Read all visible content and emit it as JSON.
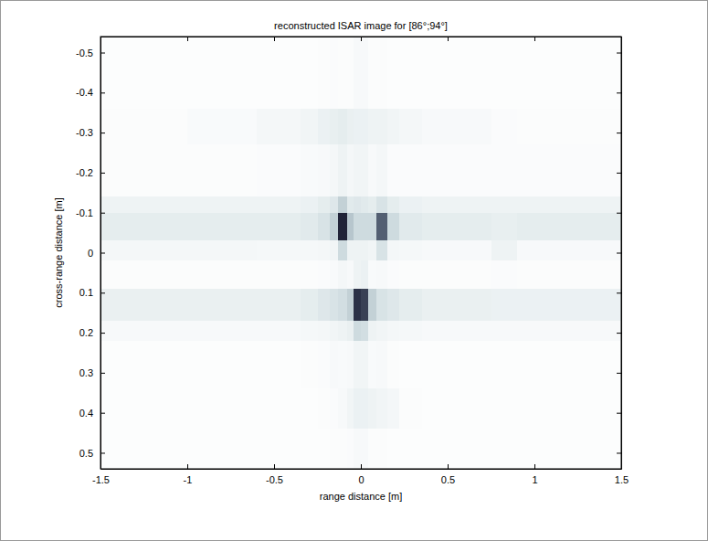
{
  "chart_data": {
    "type": "heatmap",
    "title": "reconstructed ISAR image for [86°;94°]",
    "x_label": "range distance [m]",
    "y_label": "cross-range distance [m]",
    "xlim": [
      -1.5,
      1.5
    ],
    "ylim": [
      -0.54,
      0.54
    ],
    "xticks": [
      -1.5,
      -1,
      -0.5,
      0,
      0.5,
      1,
      1.5
    ],
    "yticks": [
      -0.5,
      -0.4,
      -0.3,
      -0.2,
      -0.1,
      0,
      0.1,
      0.2,
      0.3,
      0.4,
      0.5
    ],
    "zlim": [
      0,
      1
    ],
    "x_edges": [
      -1.5,
      -1.0,
      -0.6,
      -0.35,
      -0.25,
      -0.18,
      -0.13,
      -0.08,
      -0.04,
      0.0,
      0.04,
      0.09,
      0.15,
      0.22,
      0.35,
      0.75,
      0.9,
      1.5
    ],
    "y_edges": [
      -0.54,
      -0.36,
      -0.27,
      -0.14,
      -0.1,
      -0.03,
      0.02,
      0.09,
      0.17,
      0.22,
      0.34,
      0.44,
      0.54
    ],
    "cells": [
      [
        0.02,
        0.02,
        0.02,
        0.02,
        0.03,
        0.04,
        0.03,
        0.03,
        0.06,
        0.06,
        0.03,
        0.03,
        0.02,
        0.02,
        0.02,
        0.02,
        0.02
      ],
      [
        0.03,
        0.05,
        0.08,
        0.1,
        0.14,
        0.16,
        0.18,
        0.15,
        0.14,
        0.14,
        0.12,
        0.12,
        0.1,
        0.08,
        0.06,
        0.04,
        0.03
      ],
      [
        0.03,
        0.03,
        0.04,
        0.05,
        0.06,
        0.08,
        0.12,
        0.08,
        0.1,
        0.1,
        0.06,
        0.08,
        0.04,
        0.04,
        0.04,
        0.04,
        0.04
      ],
      [
        0.12,
        0.12,
        0.12,
        0.14,
        0.18,
        0.22,
        0.35,
        0.2,
        0.22,
        0.2,
        0.18,
        0.25,
        0.18,
        0.14,
        0.12,
        0.12,
        0.12
      ],
      [
        0.18,
        0.18,
        0.18,
        0.2,
        0.25,
        0.35,
        0.95,
        0.4,
        0.3,
        0.3,
        0.3,
        0.75,
        0.3,
        0.2,
        0.18,
        0.16,
        0.18
      ],
      [
        0.08,
        0.08,
        0.07,
        0.07,
        0.08,
        0.1,
        0.3,
        0.12,
        0.12,
        0.12,
        0.1,
        0.25,
        0.08,
        0.07,
        0.06,
        0.12,
        0.06
      ],
      [
        0.03,
        0.03,
        0.03,
        0.03,
        0.04,
        0.05,
        0.08,
        0.06,
        0.12,
        0.14,
        0.05,
        0.06,
        0.04,
        0.03,
        0.03,
        0.04,
        0.03
      ],
      [
        0.15,
        0.15,
        0.15,
        0.18,
        0.22,
        0.25,
        0.28,
        0.35,
        0.9,
        0.85,
        0.35,
        0.25,
        0.22,
        0.18,
        0.15,
        0.14,
        0.14
      ],
      [
        0.06,
        0.06,
        0.06,
        0.07,
        0.08,
        0.1,
        0.12,
        0.15,
        0.3,
        0.28,
        0.12,
        0.1,
        0.08,
        0.07,
        0.06,
        0.06,
        0.06
      ],
      [
        0.02,
        0.02,
        0.02,
        0.03,
        0.04,
        0.06,
        0.05,
        0.06,
        0.1,
        0.1,
        0.05,
        0.06,
        0.03,
        0.02,
        0.02,
        0.02,
        0.02
      ],
      [
        0.02,
        0.02,
        0.02,
        0.02,
        0.03,
        0.04,
        0.06,
        0.1,
        0.14,
        0.14,
        0.12,
        0.1,
        0.08,
        0.03,
        0.02,
        0.02,
        0.02
      ],
      [
        0.02,
        0.02,
        0.02,
        0.02,
        0.02,
        0.03,
        0.03,
        0.04,
        0.06,
        0.06,
        0.03,
        0.03,
        0.02,
        0.02,
        0.02,
        0.02,
        0.02
      ]
    ]
  }
}
